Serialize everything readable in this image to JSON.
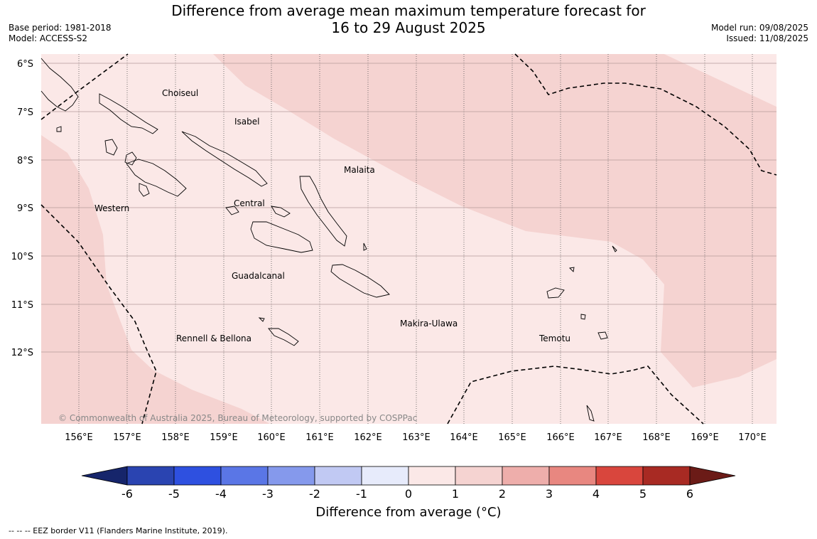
{
  "title": {
    "line1": "Difference from average mean maximum temperature forecast for",
    "line2": "16 to 29 August 2025"
  },
  "meta": {
    "base_period": "Base period: 1981-2018",
    "model": "Model: ACCESS-S2",
    "model_run": "Model run: 09/08/2025",
    "issued": "Issued: 11/08/2025"
  },
  "map": {
    "lat_labels": [
      "6°S",
      "7°S",
      "8°S",
      "9°S",
      "10°S",
      "11°S",
      "12°S"
    ],
    "lon_labels": [
      "156°E",
      "157°E",
      "158°E",
      "159°E",
      "160°E",
      "161°E",
      "162°E",
      "163°E",
      "164°E",
      "165°E",
      "166°E",
      "167°E",
      "168°E",
      "169°E",
      "170°E"
    ],
    "provinces": [
      "Choiseul",
      "Isabel",
      "Malaita",
      "Western",
      "Central",
      "Guadalcanal",
      "Makira-Ulawa",
      "Rennell & Bellona",
      "Temotu"
    ],
    "copyright": "© Commonwealth of Australia 2025, Bureau of Meteorology, supported by COSPPac",
    "shade_colors": {
      "band_0_1": "#fbe8e7",
      "band_1_2": "#f5d3d1",
      "coast": "#000000"
    }
  },
  "colorbar": {
    "ticks": [
      "-6",
      "-5",
      "-4",
      "-3",
      "-2",
      "-1",
      "0",
      "1",
      "2",
      "3",
      "4",
      "5",
      "6"
    ],
    "colors": [
      "#16256b",
      "#2a44b1",
      "#2e50e0",
      "#5a76e6",
      "#8599ec",
      "#c1c9f3",
      "#e7ebfb",
      "#fbe8e7",
      "#f5d3d1",
      "#eeaeab",
      "#e88780",
      "#d9463d",
      "#a82a23",
      "#6b1b17"
    ],
    "title": "Difference from average (°C)"
  },
  "footnote": "--  --  -- EEZ border V11 (Flanders Marine Institute, 2019)."
}
